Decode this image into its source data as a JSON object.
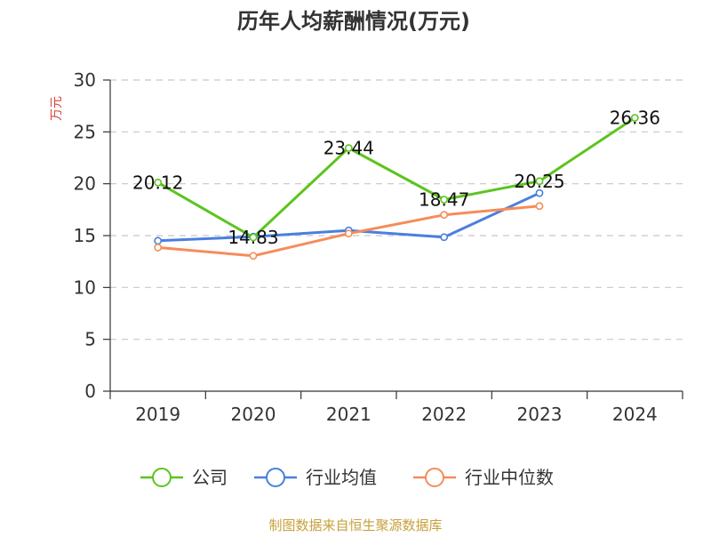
{
  "chart_data": {
    "type": "line",
    "title": "历年人均薪酬情况(万元)",
    "ylabel": "万元",
    "xlabel": "",
    "categories": [
      "2019",
      "2020",
      "2021",
      "2022",
      "2023",
      "2024"
    ],
    "ylim": [
      0,
      30
    ],
    "yticks": [
      0,
      5,
      10,
      15,
      20,
      25,
      30
    ],
    "grid": true,
    "legend_position": "bottom",
    "series": [
      {
        "name": "公司",
        "color": "#5cc41e",
        "values": [
          20.12,
          14.83,
          23.44,
          18.47,
          20.25,
          26.36
        ],
        "labels": [
          "20.12",
          "14.83",
          "23.44",
          "18.47",
          "20.25",
          "26.36"
        ]
      },
      {
        "name": "行业均值",
        "color": "#4a7fde",
        "values": [
          14.5,
          14.9,
          15.5,
          14.85,
          19.1,
          null
        ]
      },
      {
        "name": "行业中位数",
        "color": "#f58c5a",
        "values": [
          13.85,
          13.05,
          15.2,
          17.0,
          17.85,
          null
        ]
      }
    ]
  },
  "source_text": "制图数据来自恒生聚源数据库"
}
